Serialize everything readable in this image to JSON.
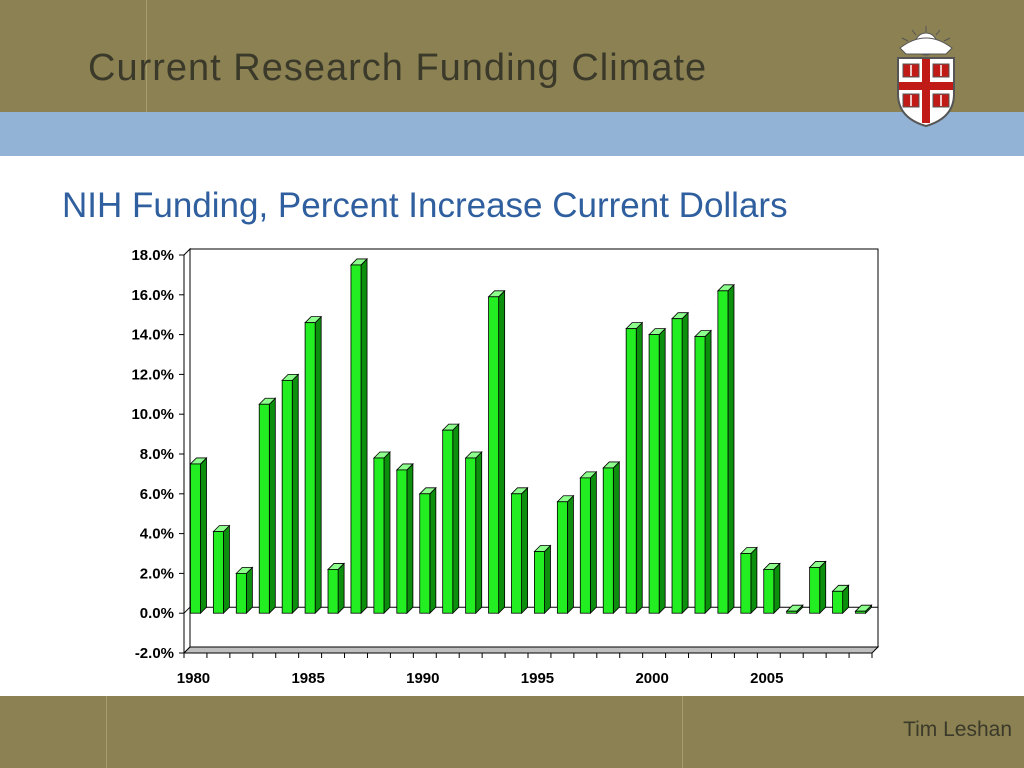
{
  "slide": {
    "title": "Current Research Funding Climate",
    "subtitle": "NIH Funding, Percent Increase Current Dollars",
    "footer": "Tim Leshan",
    "logo_icon": "university-shield-crest",
    "colors": {
      "header_band": "#8b8152",
      "accent_band": "#93b3d6",
      "subtitle_text": "#2f5f9e",
      "bar": "#22ee22"
    }
  },
  "chart_data": {
    "type": "bar",
    "title": "",
    "xlabel": "",
    "ylabel": "",
    "ylim": [
      -2,
      18
    ],
    "y_tick_values": [
      -2,
      0,
      2,
      4,
      6,
      8,
      10,
      12,
      14,
      16,
      18
    ],
    "y_tick_labels": [
      "-2.0%",
      "0.0%",
      "2.0%",
      "4.0%",
      "6.0%",
      "8.0%",
      "10.0%",
      "12.0%",
      "14.0%",
      "16.0%",
      "18.0%"
    ],
    "x_tick_labels": [
      "1980",
      "1985",
      "1990",
      "1995",
      "2000",
      "2005"
    ],
    "grid": false,
    "legend": "none",
    "style": "3d-bars",
    "categories": [
      1980,
      1981,
      1982,
      1983,
      1984,
      1985,
      1986,
      1987,
      1988,
      1989,
      1990,
      1991,
      1992,
      1993,
      1994,
      1995,
      1996,
      1997,
      1998,
      1999,
      2000,
      2001,
      2002,
      2003,
      2004,
      2005,
      2006,
      2007,
      2008,
      2009
    ],
    "values": [
      7.5,
      4.1,
      2.0,
      10.5,
      11.7,
      14.6,
      2.2,
      17.5,
      7.8,
      7.2,
      6.0,
      9.2,
      7.8,
      15.9,
      6.0,
      3.1,
      5.6,
      6.8,
      7.3,
      14.3,
      14.0,
      14.8,
      13.9,
      16.2,
      3.0,
      2.2,
      0.1,
      2.3,
      1.1,
      0.1
    ]
  }
}
